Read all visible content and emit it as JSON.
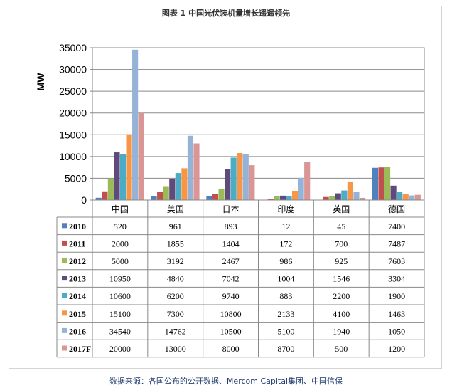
{
  "title": "图表 1 中国光伏装机量增长遥遥领先",
  "caption": "数据来源：各国公布的公开数据、Mercom Capital集团、中国信保",
  "chart_data": {
    "type": "bar",
    "categories": [
      "中国",
      "美国",
      "日本",
      "印度",
      "英国",
      "德国"
    ],
    "ylabel": "MW",
    "ylim": [
      0,
      35000
    ],
    "yticks": [
      0,
      5000,
      10000,
      15000,
      20000,
      25000,
      30000,
      35000
    ],
    "grid": true,
    "legend": "data-table-left",
    "series": [
      {
        "name": "2010",
        "color": "#4f81bd",
        "values": [
          520,
          961,
          893,
          12,
          45,
          7400
        ]
      },
      {
        "name": "2011",
        "color": "#c0504d",
        "values": [
          2000,
          1855,
          1404,
          172,
          700,
          7487
        ]
      },
      {
        "name": "2012",
        "color": "#9bbb59",
        "values": [
          5000,
          3192,
          2467,
          986,
          925,
          7603
        ]
      },
      {
        "name": "2013",
        "color": "#604a7b",
        "values": [
          10950,
          4840,
          7042,
          1004,
          1546,
          3304
        ]
      },
      {
        "name": "2014",
        "color": "#4bacc6",
        "values": [
          10600,
          6200,
          9740,
          883,
          2200,
          1900
        ]
      },
      {
        "name": "2015",
        "color": "#f79646",
        "values": [
          15100,
          7300,
          10800,
          2133,
          4100,
          1463
        ]
      },
      {
        "name": "2016",
        "color": "#95b3d7",
        "values": [
          34540,
          14762,
          10500,
          5100,
          1940,
          1050
        ]
      },
      {
        "name": "2017F",
        "color": "#d99694",
        "values": [
          20000,
          13000,
          8000,
          8700,
          500,
          1200
        ]
      }
    ]
  }
}
